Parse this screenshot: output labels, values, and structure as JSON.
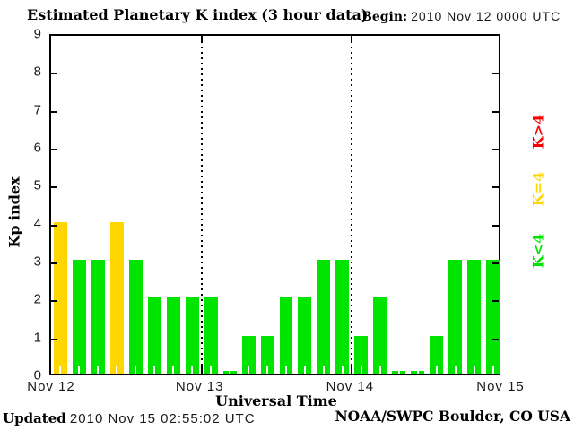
{
  "header": {
    "title": "Estimated Planetary K index (3 hour data)",
    "begin_label": "Begin:",
    "begin_value": "2010 Nov 12 0000 UTC"
  },
  "chart_data": {
    "type": "bar",
    "title": "Estimated Planetary K index (3 hour data)",
    "xlabel": "Universal Time",
    "ylabel": "Kp index",
    "ylim": [
      0,
      9
    ],
    "y_ticks": [
      0,
      1,
      2,
      3,
      4,
      5,
      6,
      7,
      8,
      9
    ],
    "x_tick_labels": [
      "Nov 12",
      "Nov 13",
      "Nov 14",
      "Nov 15"
    ],
    "bin_hours": 3,
    "begin": "2010 Nov 12 0000 UTC",
    "values": [
      4,
      3,
      3,
      4,
      3,
      2,
      2,
      2,
      2,
      0,
      1,
      1,
      2,
      2,
      3,
      3,
      1,
      2,
      0,
      0,
      1,
      3,
      3,
      3
    ],
    "color_rule": "green if Kp<4, yellow if Kp=4, red if Kp>4",
    "colors": {
      "low": "#00E400",
      "mid": "#FFD700",
      "high": "#FF0000"
    },
    "legend": [
      {
        "label": "K>4",
        "color": "#FF0000"
      },
      {
        "label": "K=4",
        "color": "#FFD700"
      },
      {
        "label": "K<4",
        "color": "#00E400"
      }
    ],
    "grid": "dotted vertical lines at day boundaries, legend right, no horizontal grid"
  },
  "footer": {
    "updated_label": "Updated",
    "updated_value": "2010 Nov 15 02:55:02 UTC",
    "credit": "NOAA/SWPC Boulder, CO USA"
  }
}
